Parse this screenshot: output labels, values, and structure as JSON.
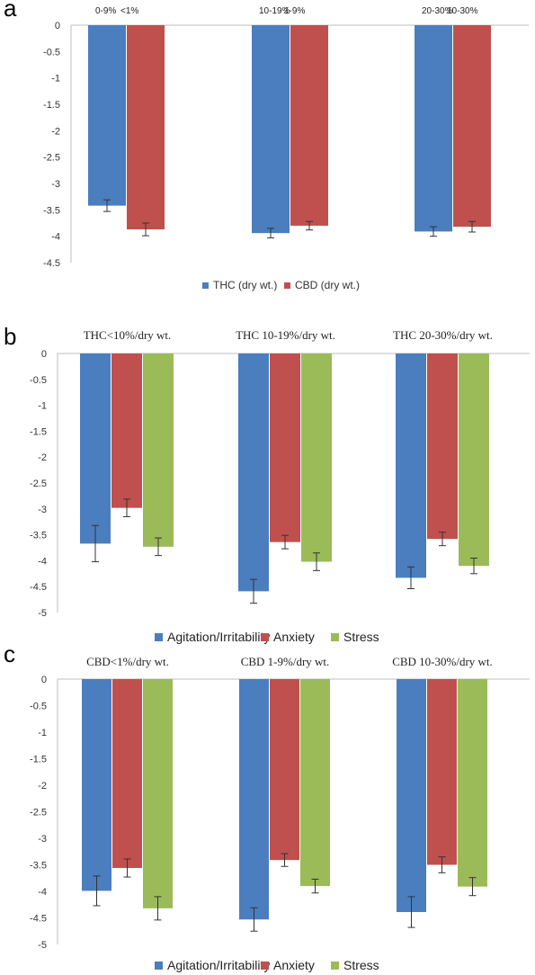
{
  "chart_data": [
    {
      "panel": "a",
      "type": "bar",
      "categories": [
        {
          "labels": [
            "0-9%",
            "<1%"
          ]
        },
        {
          "labels": [
            "10-19%",
            "1-9%"
          ]
        },
        {
          "labels": [
            "20-30%",
            "10-30%"
          ]
        }
      ],
      "series": [
        {
          "name": "THC (dry wt.)",
          "color": "#4a7ebf",
          "values": [
            -3.42,
            -3.94,
            -3.91
          ],
          "errors": [
            0.11,
            0.09,
            0.09
          ]
        },
        {
          "name": "CBD (dry wt.)",
          "color": "#c0504d",
          "values": [
            -3.87,
            -3.8,
            -3.82
          ],
          "errors": [
            0.12,
            0.08,
            0.1
          ]
        }
      ],
      "ylim": [
        -4.5,
        0
      ],
      "yticks": [
        "0",
        "-0.5",
        "-1",
        "-1.5",
        "-2",
        "-2.5",
        "-3",
        "-3.5",
        "-4",
        "-4.5"
      ],
      "ytick_values": [
        0,
        -0.5,
        -1,
        -1.5,
        -2,
        -2.5,
        -3,
        -3.5,
        -4,
        -4.5
      ],
      "legend_position": "bottom",
      "grid": false
    },
    {
      "panel": "b",
      "type": "bar",
      "categories": [
        {
          "labels": [
            "THC<10%/dry wt."
          ]
        },
        {
          "labels": [
            "THC 10-19%/dry wt."
          ]
        },
        {
          "labels": [
            "THC 20-30%/dry wt."
          ]
        }
      ],
      "series": [
        {
          "name": "Agitation/Irritability",
          "color": "#4a7ebf",
          "values": [
            -3.67,
            -4.59,
            -4.33
          ],
          "errors": [
            0.35,
            0.23,
            0.21
          ]
        },
        {
          "name": "Anxiety",
          "color": "#c0504d",
          "values": [
            -2.98,
            -3.64,
            -3.58
          ],
          "errors": [
            0.17,
            0.13,
            0.13
          ]
        },
        {
          "name": "Stress",
          "color": "#9bbb59",
          "values": [
            -3.73,
            -4.02,
            -4.1
          ],
          "errors": [
            0.17,
            0.17,
            0.15
          ]
        }
      ],
      "ylim": [
        -5,
        0
      ],
      "yticks": [
        "0",
        "-0.5",
        "-1",
        "-1.5",
        "-2",
        "-2.5",
        "-3",
        "-3.5",
        "-4",
        "-4.5",
        "-5"
      ],
      "ytick_values": [
        0,
        -0.5,
        -1,
        -1.5,
        -2,
        -2.5,
        -3,
        -3.5,
        -4,
        -4.5,
        -5
      ],
      "legend_position": "bottom",
      "grid": false
    },
    {
      "panel": "c",
      "type": "bar",
      "categories": [
        {
          "labels": [
            "CBD<1%/dry wt."
          ]
        },
        {
          "labels": [
            "CBD 1-9%/dry wt."
          ]
        },
        {
          "labels": [
            "CBD 10-30%/dry wt."
          ]
        }
      ],
      "series": [
        {
          "name": "Agitation/Irritability",
          "color": "#4a7ebf",
          "values": [
            -3.99,
            -4.53,
            -4.39
          ],
          "errors": [
            0.28,
            0.22,
            0.29
          ]
        },
        {
          "name": "Anxiety",
          "color": "#c0504d",
          "values": [
            -3.56,
            -3.41,
            -3.5
          ],
          "errors": [
            0.17,
            0.12,
            0.15
          ]
        },
        {
          "name": "Stress",
          "color": "#9bbb59",
          "values": [
            -4.32,
            -3.9,
            -3.91
          ],
          "errors": [
            0.22,
            0.13,
            0.17
          ]
        }
      ],
      "ylim": [
        -5,
        0
      ],
      "yticks": [
        "0",
        "-0.5",
        "-1",
        "-1.5",
        "-2",
        "-2.5",
        "-3",
        "-3.5",
        "-4",
        "-4.5",
        "-5"
      ],
      "ytick_values": [
        0,
        -0.5,
        -1,
        -1.5,
        -2,
        -2.5,
        -3,
        -3.5,
        -4,
        -4.5,
        -5
      ],
      "legend_position": "bottom",
      "grid": false
    }
  ]
}
